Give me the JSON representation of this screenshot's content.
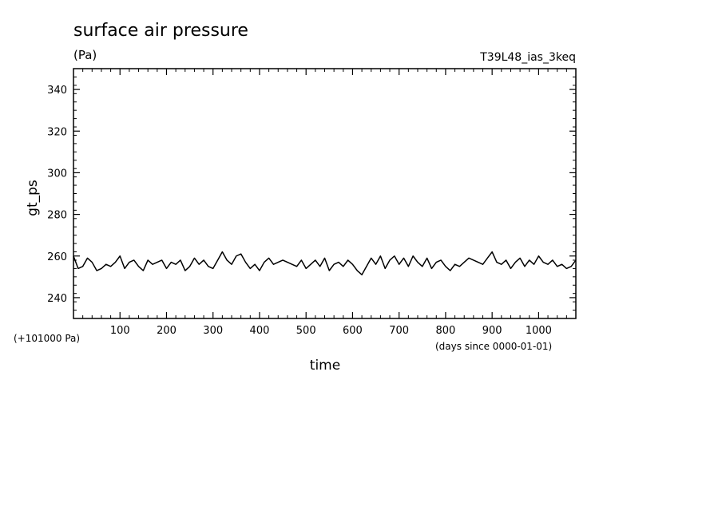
{
  "chart_data": {
    "type": "line",
    "title": "surface air pressure",
    "units": "(Pa)",
    "experiment": "T39L48_ias_3keq",
    "xlabel": "time",
    "ylabel": "gt_ps",
    "x_note": "(days since 0000-01-01)",
    "y_offset_note": "(+101000 Pa)",
    "xlim": [
      0,
      1080
    ],
    "ylim": [
      230,
      350
    ],
    "x_ticks": [
      100,
      200,
      300,
      400,
      500,
      600,
      700,
      800,
      900,
      1000
    ],
    "x_tick_labels": [
      "100",
      "200",
      "300",
      "400",
      "500",
      "600",
      "700",
      "800",
      "900",
      "1000"
    ],
    "y_ticks": [
      240,
      260,
      280,
      300,
      320,
      340
    ],
    "y_tick_labels": [
      "240",
      "260",
      "280",
      "300",
      "320",
      "340"
    ],
    "grid": false,
    "series": [
      {
        "color": "#000000",
        "x": [
          0,
          10,
          20,
          30,
          40,
          50,
          60,
          70,
          80,
          90,
          100,
          110,
          120,
          130,
          140,
          150,
          160,
          170,
          180,
          190,
          200,
          210,
          220,
          230,
          240,
          250,
          260,
          270,
          280,
          290,
          300,
          310,
          320,
          330,
          340,
          350,
          360,
          370,
          380,
          390,
          400,
          410,
          420,
          430,
          440,
          450,
          460,
          470,
          480,
          490,
          500,
          510,
          520,
          530,
          540,
          550,
          560,
          570,
          580,
          590,
          600,
          610,
          620,
          630,
          640,
          650,
          660,
          670,
          680,
          690,
          700,
          710,
          720,
          730,
          740,
          750,
          760,
          770,
          780,
          790,
          800,
          810,
          820,
          830,
          840,
          850,
          860,
          870,
          880,
          890,
          900,
          910,
          920,
          930,
          940,
          950,
          960,
          970,
          980,
          990,
          1000,
          1010,
          1020,
          1030,
          1040,
          1050,
          1060,
          1070,
          1080
        ],
        "values": [
          260,
          254,
          255,
          259,
          257,
          253,
          254,
          256,
          255,
          257,
          260,
          254,
          257,
          258,
          255,
          253,
          258,
          256,
          257,
          258,
          254,
          257,
          256,
          258,
          253,
          255,
          259,
          256,
          258,
          255,
          254,
          258,
          262,
          258,
          256,
          260,
          261,
          257,
          254,
          256,
          253,
          257,
          259,
          256,
          257,
          258,
          257,
          256,
          255,
          258,
          254,
          256,
          258,
          255,
          259,
          253,
          256,
          257,
          255,
          258,
          256,
          253,
          251,
          255,
          259,
          256,
          260,
          254,
          258,
          260,
          256,
          259,
          255,
          260,
          257,
          255,
          259,
          254,
          257,
          258,
          255,
          253,
          256,
          255,
          257,
          259,
          258,
          257,
          256,
          259,
          262,
          257,
          256,
          258,
          254,
          257,
          259,
          255,
          258,
          256,
          260,
          257,
          256,
          258,
          255,
          256,
          254,
          255,
          258
        ]
      }
    ]
  }
}
